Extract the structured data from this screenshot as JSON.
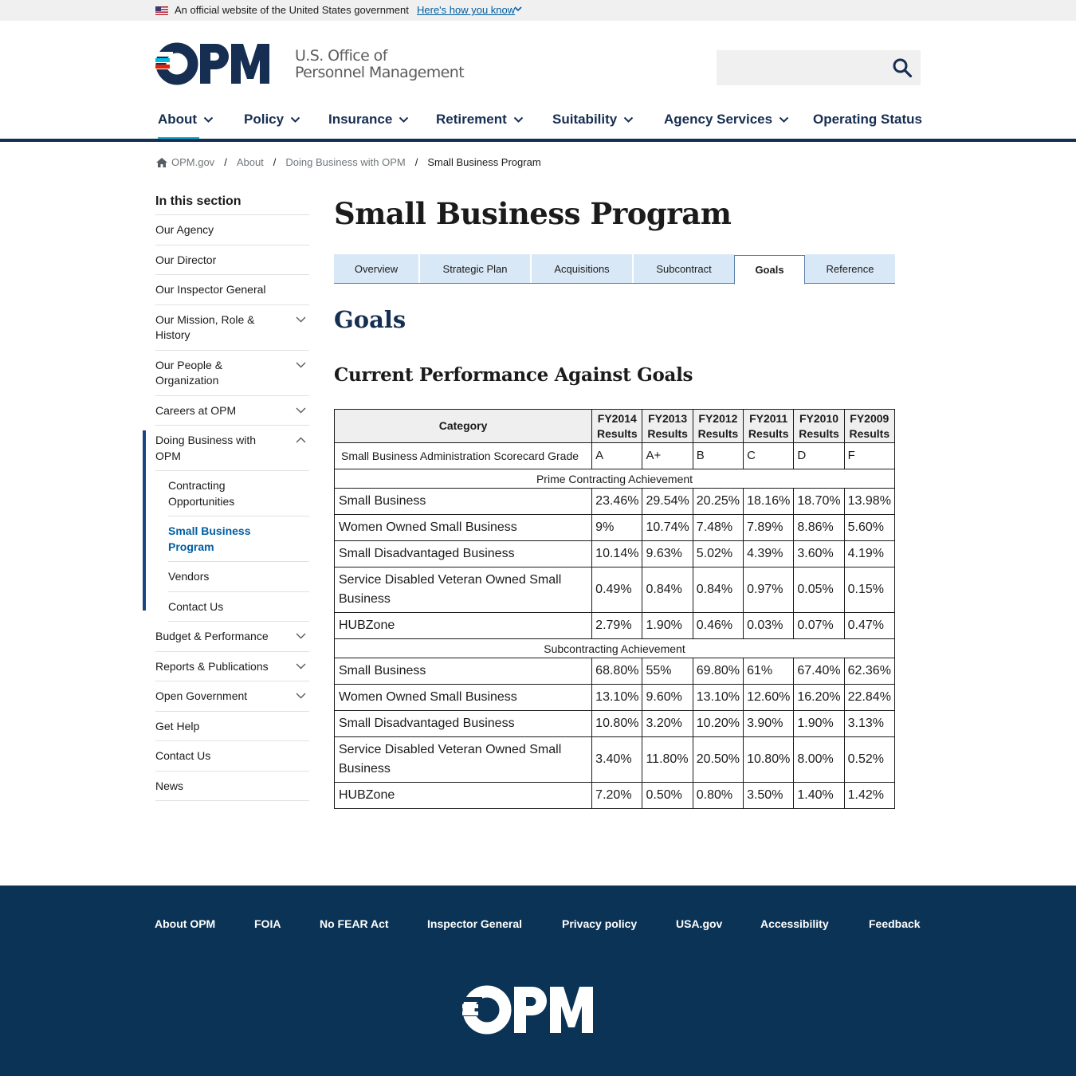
{
  "banner": {
    "text": "An official website of the United States government",
    "link": "Here's how you know"
  },
  "header": {
    "logo_line1": "U.S. Office of",
    "logo_line2": "Personnel Management",
    "search_placeholder": ""
  },
  "nav": {
    "items": [
      {
        "label": "About"
      },
      {
        "label": "Policy"
      },
      {
        "label": "Insurance"
      },
      {
        "label": "Retirement"
      },
      {
        "label": "Suitability"
      },
      {
        "label": "Agency Services"
      },
      {
        "label": "Operating Status"
      }
    ]
  },
  "breadcrumb": {
    "items": [
      "OPM.gov",
      "About",
      "Doing Business with OPM"
    ],
    "current": "Small Business Program"
  },
  "sidebar": {
    "heading": "In this section",
    "items": [
      "Our Agency",
      "Our Director",
      "Our Inspector General",
      "Our Mission, Role & History",
      "Our People & Organization",
      "Careers at OPM",
      "Doing Business with OPM"
    ],
    "subitems": [
      "Contracting Opportunities",
      "Small Business Program",
      "Vendors",
      "Contact Us"
    ],
    "items_after": [
      "Budget & Performance",
      "Reports & Publications",
      "Open Government",
      "Get Help",
      "Contact Us",
      "News"
    ]
  },
  "page": {
    "title": "Small Business Program",
    "tabs": [
      "Overview",
      "Strategic Plan",
      "Acquisitions",
      "Subcontract",
      "Goals",
      "Reference"
    ],
    "active_tab": "Goals",
    "section_title": "Goals",
    "subsection_title": "Current Performance Against Goals"
  },
  "table": {
    "header_category": "Category",
    "years": [
      "FY2014",
      "FY2013",
      "FY2012",
      "FY2011",
      "FY2010",
      "FY2009"
    ],
    "results_label": "Results",
    "grade_row": {
      "label": "Small Business Administration Scorecard Grade",
      "values": [
        "A",
        "A+",
        "B",
        "C",
        "D",
        "F"
      ]
    },
    "prime_heading": "Prime Contracting Achievement",
    "prime_rows": [
      {
        "label": "Small Business",
        "values": [
          "23.46%",
          "29.54%",
          "20.25%",
          "18.16%",
          "18.70%",
          "13.98%"
        ]
      },
      {
        "label": "Women Owned Small Business",
        "values": [
          "9%",
          "10.74%",
          "7.48%",
          "7.89%",
          "8.86%",
          "5.60%"
        ]
      },
      {
        "label": "Small Disadvantaged Business",
        "values": [
          "10.14%",
          "9.63%",
          "5.02%",
          "4.39%",
          "3.60%",
          "4.19%"
        ]
      },
      {
        "label": "Service Disabled Veteran Owned Small Business",
        "values": [
          "0.49%",
          "0.84%",
          "0.84%",
          "0.97%",
          "0.05%",
          "0.15%"
        ]
      },
      {
        "label": "HUBZone",
        "values": [
          "2.79%",
          "1.90%",
          "0.46%",
          "0.03%",
          "0.07%",
          "0.47%"
        ]
      }
    ],
    "sub_heading": "Subcontracting Achievement",
    "sub_rows": [
      {
        "label": "Small Business",
        "values": [
          "68.80%",
          "55%",
          "69.80%",
          "61%",
          "67.40%",
          "62.36%"
        ]
      },
      {
        "label": "Women Owned Small Business",
        "values": [
          "13.10%",
          "9.60%",
          "13.10%",
          "12.60%",
          "16.20%",
          "22.84%"
        ]
      },
      {
        "label": "Small Disadvantaged Business",
        "values": [
          "10.80%",
          "3.20%",
          "10.20%",
          "3.90%",
          "1.90%",
          "3.13%"
        ]
      },
      {
        "label": "Service Disabled Veteran Owned Small Business",
        "values": [
          "3.40%",
          "11.80%",
          "20.50%",
          "10.80%",
          "8.00%",
          "0.52%"
        ]
      },
      {
        "label": "HUBZone",
        "values": [
          "7.20%",
          "0.50%",
          "0.80%",
          "3.50%",
          "1.40%",
          "1.42%"
        ]
      }
    ]
  },
  "footer": {
    "links": [
      "About OPM",
      "FOIA",
      "No FEAR Act",
      "Inspector General",
      "Privacy policy",
      "USA.gov",
      "Accessibility",
      "Feedback"
    ]
  },
  "colors": {
    "navy": "#162e51",
    "link_blue": "#005ea2",
    "accent_cyan": "#00bde3",
    "footer_bg": "#0b3356",
    "tab_bg": "#d9e8f6",
    "logo_red": "#e52207"
  },
  "icons": [
    "us-flag-icon",
    "chevron-down-icon",
    "search-icon",
    "home-icon",
    "chevron-up-icon"
  ]
}
